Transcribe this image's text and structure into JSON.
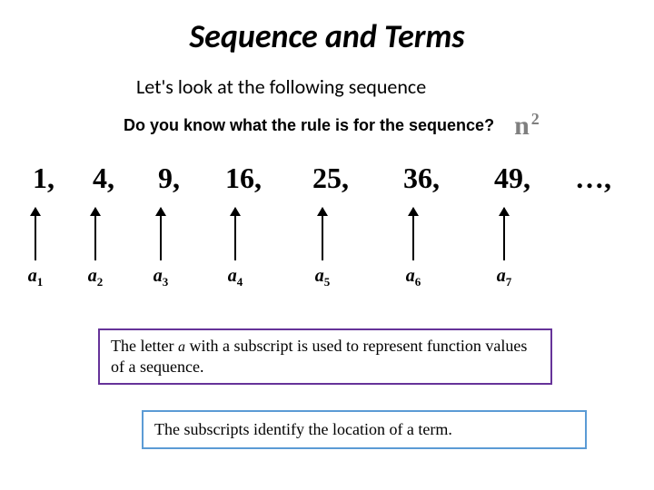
{
  "title": "Sequence and Terms",
  "subtitle": "Let's look at the following sequence",
  "question": "Do you know what the rule is for the sequence?",
  "rule_base": "n",
  "rule_exp": "2",
  "sequence": [
    {
      "value": "1,",
      "a_sub": "1"
    },
    {
      "value": "4,",
      "a_sub": "2"
    },
    {
      "value": "9,",
      "a_sub": "3"
    },
    {
      "value": "16,",
      "a_sub": "4"
    },
    {
      "value": "25,",
      "a_sub": "5"
    },
    {
      "value": "36,",
      "a_sub": "6"
    },
    {
      "value": "49,",
      "a_sub": "7"
    },
    {
      "value": "…,",
      "a_sub": ""
    }
  ],
  "note1_part1": "The letter ",
  "note1_italic": "a",
  "note1_part2": " with a subscript is used to represent function values of a sequence.",
  "note2": "The subscripts identify the location of a term.",
  "colors": {
    "rule_text": "#7f7f7f",
    "note1_border": "#663399",
    "note2_border": "#5b9bd5",
    "background": "#ffffff"
  }
}
